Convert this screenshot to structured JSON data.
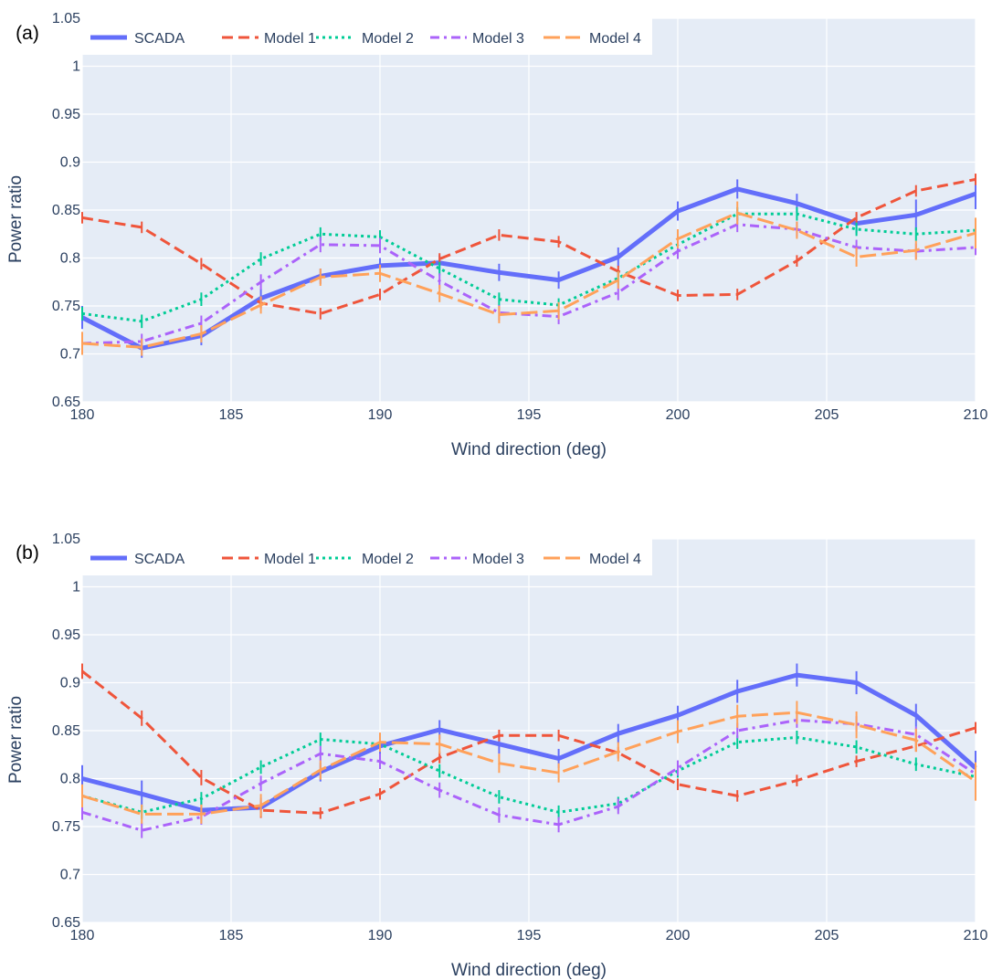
{
  "chart_data": [
    {
      "type": "line",
      "panel_label": "(a)",
      "xlabel": "Wind direction (deg)",
      "ylabel": "Power ratio",
      "xlim": [
        180,
        210
      ],
      "ylim": [
        0.65,
        1.05
      ],
      "xticks": [
        "180",
        "185",
        "190",
        "195",
        "200",
        "205",
        "210"
      ],
      "yticks": [
        "0.65",
        "0.7",
        "0.75",
        "0.8",
        "0.85",
        "0.9",
        "0.95",
        "1",
        "1.05"
      ],
      "grid": true,
      "legend_position": "top-left, horizontal",
      "x": [
        180,
        182,
        184,
        186,
        188,
        190,
        192,
        194,
        196,
        198,
        200,
        202,
        204,
        206,
        208,
        210
      ],
      "series": [
        {
          "name": "SCADA",
          "color": "#636efa",
          "dash": "solid",
          "values": [
            0.738,
            0.706,
            0.719,
            0.758,
            0.781,
            0.792,
            0.795,
            0.785,
            0.777,
            0.801,
            0.849,
            0.872,
            0.857,
            0.836,
            0.845,
            0.867
          ],
          "errors": [
            0.012,
            0.01,
            0.01,
            0.01,
            0.008,
            0.008,
            0.008,
            0.009,
            0.009,
            0.01,
            0.01,
            0.01,
            0.01,
            0.01,
            0.016,
            0.016
          ]
        },
        {
          "name": "Model 1",
          "color": "#ef553b",
          "dash": "dash",
          "values": [
            0.842,
            0.832,
            0.794,
            0.753,
            0.742,
            0.762,
            0.799,
            0.824,
            0.817,
            0.786,
            0.761,
            0.762,
            0.797,
            0.842,
            0.87,
            0.882
          ],
          "errors": [
            0.006,
            0.006,
            0.006,
            0.006,
            0.006,
            0.006,
            0.006,
            0.006,
            0.006,
            0.006,
            0.006,
            0.006,
            0.006,
            0.006,
            0.006,
            0.006
          ]
        },
        {
          "name": "Model 2",
          "color": "#00cc96",
          "dash": "dot",
          "values": [
            0.742,
            0.734,
            0.757,
            0.799,
            0.825,
            0.822,
            0.789,
            0.757,
            0.751,
            0.779,
            0.814,
            0.846,
            0.846,
            0.83,
            0.825,
            0.829
          ],
          "errors": [
            0.007,
            0.007,
            0.007,
            0.007,
            0.007,
            0.007,
            0.007,
            0.007,
            0.007,
            0.007,
            0.007,
            0.007,
            0.007,
            0.007,
            0.007,
            0.007
          ]
        },
        {
          "name": "Model 3",
          "color": "#ab63fa",
          "dash": "dashdot",
          "values": [
            0.711,
            0.713,
            0.732,
            0.775,
            0.814,
            0.813,
            0.776,
            0.743,
            0.739,
            0.764,
            0.807,
            0.835,
            0.83,
            0.811,
            0.807,
            0.811
          ],
          "errors": [
            0.008,
            0.008,
            0.008,
            0.008,
            0.008,
            0.008,
            0.008,
            0.008,
            0.008,
            0.008,
            0.008,
            0.008,
            0.008,
            0.008,
            0.008,
            0.008
          ]
        },
        {
          "name": "Model 4",
          "color": "#ffa15a",
          "dash": "longdash",
          "values": [
            0.711,
            0.707,
            0.721,
            0.751,
            0.78,
            0.784,
            0.763,
            0.741,
            0.745,
            0.777,
            0.82,
            0.847,
            0.829,
            0.801,
            0.808,
            0.826
          ],
          "errors": [
            0.012,
            0.009,
            0.009,
            0.009,
            0.009,
            0.009,
            0.009,
            0.009,
            0.009,
            0.009,
            0.01,
            0.012,
            0.009,
            0.01,
            0.01,
            0.016
          ]
        }
      ]
    },
    {
      "type": "line",
      "panel_label": "(b)",
      "xlabel": "Wind direction (deg)",
      "ylabel": "Power ratio",
      "xlim": [
        180,
        210
      ],
      "ylim": [
        0.65,
        1.05
      ],
      "xticks": [
        "180",
        "185",
        "190",
        "195",
        "200",
        "205",
        "210"
      ],
      "yticks": [
        "0.65",
        "0.7",
        "0.75",
        "0.8",
        "0.85",
        "0.9",
        "0.95",
        "1",
        "1.05"
      ],
      "grid": true,
      "legend_position": "top-left, horizontal",
      "x": [
        180,
        182,
        184,
        186,
        188,
        190,
        192,
        194,
        196,
        198,
        200,
        202,
        204,
        206,
        208,
        210
      ],
      "series": [
        {
          "name": "SCADA",
          "color": "#636efa",
          "dash": "solid",
          "values": [
            0.8,
            0.784,
            0.767,
            0.77,
            0.807,
            0.834,
            0.851,
            0.836,
            0.821,
            0.847,
            0.866,
            0.891,
            0.908,
            0.9,
            0.866,
            0.811
          ],
          "errors": [
            0.014,
            0.014,
            0.01,
            0.01,
            0.01,
            0.01,
            0.01,
            0.01,
            0.01,
            0.01,
            0.01,
            0.012,
            0.012,
            0.012,
            0.012,
            0.018
          ]
        },
        {
          "name": "Model 1",
          "color": "#ef553b",
          "dash": "dash",
          "values": [
            0.912,
            0.863,
            0.801,
            0.767,
            0.764,
            0.784,
            0.822,
            0.845,
            0.845,
            0.827,
            0.794,
            0.782,
            0.798,
            0.818,
            0.834,
            0.853
          ],
          "errors": [
            0.008,
            0.008,
            0.008,
            0.008,
            0.006,
            0.006,
            0.006,
            0.006,
            0.006,
            0.006,
            0.006,
            0.006,
            0.006,
            0.006,
            0.006,
            0.006
          ]
        },
        {
          "name": "Model 2",
          "color": "#00cc96",
          "dash": "dot",
          "values": [
            0.782,
            0.765,
            0.779,
            0.812,
            0.841,
            0.836,
            0.808,
            0.781,
            0.765,
            0.774,
            0.808,
            0.838,
            0.843,
            0.833,
            0.815,
            0.802
          ],
          "errors": [
            0.007,
            0.007,
            0.007,
            0.007,
            0.007,
            0.007,
            0.007,
            0.007,
            0.007,
            0.007,
            0.007,
            0.007,
            0.007,
            0.007,
            0.007,
            0.007
          ]
        },
        {
          "name": "Model 3",
          "color": "#ab63fa",
          "dash": "dashdot",
          "values": [
            0.765,
            0.746,
            0.76,
            0.795,
            0.826,
            0.818,
            0.788,
            0.762,
            0.752,
            0.771,
            0.811,
            0.85,
            0.861,
            0.857,
            0.846,
            0.805
          ],
          "errors": [
            0.008,
            0.008,
            0.008,
            0.008,
            0.008,
            0.008,
            0.008,
            0.008,
            0.008,
            0.008,
            0.008,
            0.008,
            0.008,
            0.008,
            0.008,
            0.008
          ]
        },
        {
          "name": "Model 4",
          "color": "#ffa15a",
          "dash": "longdash",
          "values": [
            0.782,
            0.763,
            0.763,
            0.772,
            0.809,
            0.838,
            0.836,
            0.816,
            0.806,
            0.828,
            0.849,
            0.865,
            0.869,
            0.856,
            0.84,
            0.797
          ],
          "errors": [
            0.012,
            0.01,
            0.01,
            0.012,
            0.01,
            0.01,
            0.01,
            0.01,
            0.01,
            0.01,
            0.012,
            0.012,
            0.012,
            0.014,
            0.012,
            0.02
          ]
        }
      ]
    }
  ]
}
